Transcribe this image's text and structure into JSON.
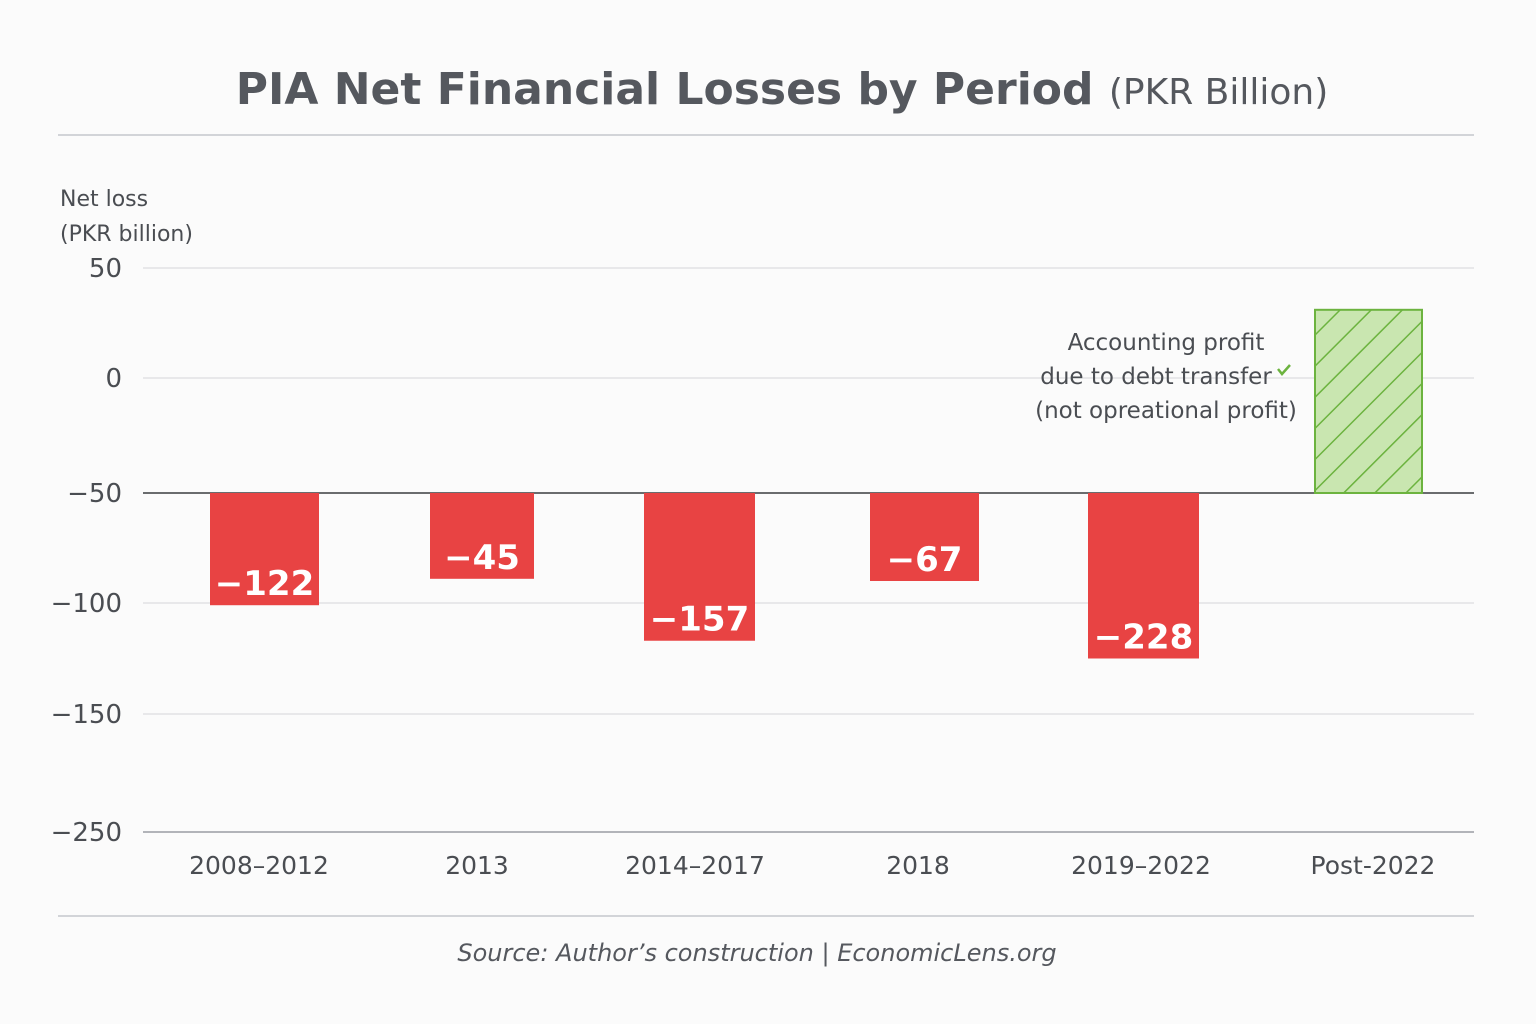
{
  "chart_data": {
    "type": "bar",
    "title": "PIA Net Financial Losses by Period",
    "title_unit": "(PKR Billion)",
    "ylabel_line1": "Net loss",
    "ylabel_line2": "(PKR billion)",
    "yticks": [
      50,
      0,
      -50,
      -100,
      -150,
      -250
    ],
    "ytick_labels": [
      "50",
      "0",
      "−50",
      "−100",
      "−150",
      "−250"
    ],
    "baseline": -50,
    "categories": [
      "2008–2012",
      "2013",
      "2014–2017",
      "2018",
      "2019–2022",
      "Post-2022"
    ],
    "values": [
      -122,
      -45,
      -157,
      -67,
      -228,
      null
    ],
    "data_labels": [
      "−122",
      "−45",
      "−157",
      "−67",
      "−228",
      ""
    ],
    "bar_ends_on_axis": [
      -101,
      -89,
      -117,
      -90,
      -125,
      31
    ],
    "colors": {
      "loss": "#e84343",
      "profit_fill": "#c9e6b0",
      "profit_hatch": "#6cb33f"
    },
    "annotation": [
      "Accounting profit",
      "due to debt transfer",
      "(not opreational profit)"
    ],
    "annotation_icon": "checkmark-icon",
    "grid": true,
    "legend": "none",
    "source": "Source: Author’s construction | EconomicLens.org"
  }
}
